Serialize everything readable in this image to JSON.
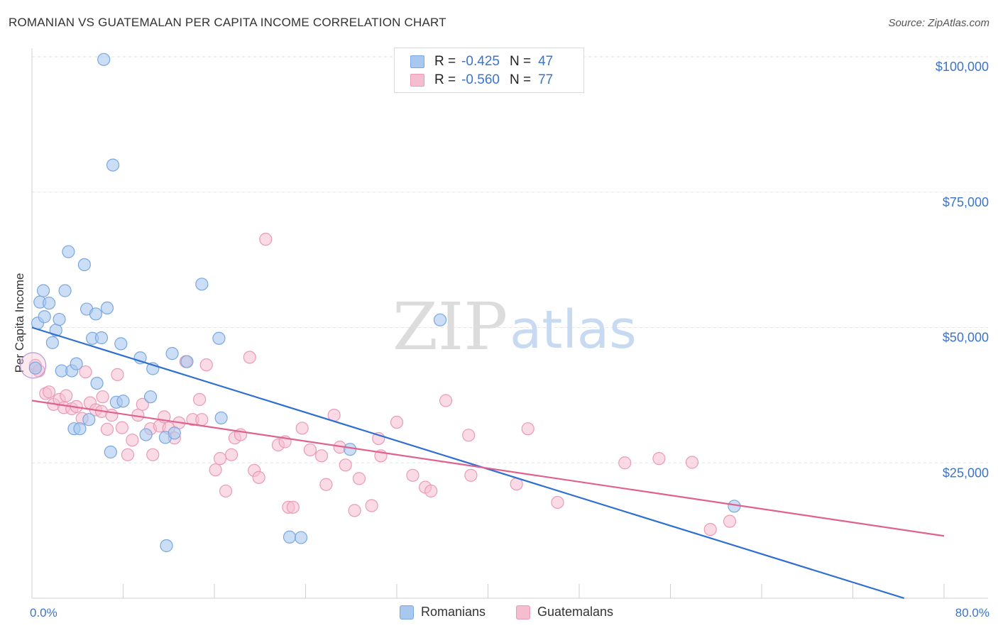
{
  "title": "ROMANIAN VS GUATEMALAN PER CAPITA INCOME CORRELATION CHART",
  "source": "Source: ZipAtlas.com",
  "watermark": {
    "zip": "ZIP",
    "atlas": "atlas"
  },
  "legend": {
    "rows": [
      {
        "r_label": "R =",
        "r_value": "-0.425",
        "n_label": "N =",
        "n_value": "47"
      },
      {
        "r_label": "R =",
        "r_value": "-0.560",
        "n_label": "N =",
        "n_value": "77"
      }
    ]
  },
  "bottom_legend": {
    "romanians": "Romanians",
    "guatemalans": "Guatemalans"
  },
  "colors": {
    "romanians_fill": "#a9c8ef",
    "romanians_stroke": "#7aa7de",
    "romanians_line": "#2f6fd1",
    "guatemalans_fill": "#f6bdd0",
    "guatemalans_stroke": "#ea9ab6",
    "guatemalans_line": "#e0628c",
    "tick_text": "#3b74c9"
  },
  "chart_data": {
    "type": "scatter",
    "title": "ROMANIAN VS GUATEMALAN PER CAPITA INCOME CORRELATION CHART",
    "xlabel": "",
    "ylabel": "Per Capita Income",
    "xlim": [
      0,
      80
    ],
    "ylim": [
      0,
      102000
    ],
    "x_tick_labels": [
      "0.0%",
      "80.0%"
    ],
    "y_ticks": [
      25000,
      50000,
      75000,
      100000
    ],
    "y_tick_labels": [
      "$25,000",
      "$50,000",
      "$75,000",
      "$100,000"
    ],
    "grid": true,
    "legend_position": "top-center",
    "series": [
      {
        "name": "Romanians",
        "r": -0.425,
        "n": 47,
        "trend": {
          "x": [
            0,
            76.5
          ],
          "y": [
            50000,
            0
          ]
        },
        "points": [
          [
            0.3,
            42500
          ],
          [
            0.5,
            50800
          ],
          [
            0.7,
            54700
          ],
          [
            1.0,
            56800
          ],
          [
            1.1,
            52000
          ],
          [
            1.5,
            54500
          ],
          [
            1.8,
            47200
          ],
          [
            2.1,
            49500
          ],
          [
            2.4,
            51500
          ],
          [
            2.6,
            42000
          ],
          [
            2.9,
            56800
          ],
          [
            3.2,
            64000
          ],
          [
            3.5,
            42000
          ],
          [
            3.7,
            31300
          ],
          [
            3.9,
            43300
          ],
          [
            4.2,
            31300
          ],
          [
            4.6,
            61600
          ],
          [
            4.8,
            53400
          ],
          [
            5.0,
            33000
          ],
          [
            5.3,
            48000
          ],
          [
            5.6,
            52500
          ],
          [
            5.7,
            39700
          ],
          [
            6.1,
            48100
          ],
          [
            6.3,
            99500
          ],
          [
            6.6,
            53600
          ],
          [
            6.9,
            27000
          ],
          [
            7.1,
            80000
          ],
          [
            7.4,
            36200
          ],
          [
            7.8,
            47000
          ],
          [
            8.0,
            36400
          ],
          [
            9.5,
            44400
          ],
          [
            10.0,
            30200
          ],
          [
            10.4,
            37200
          ],
          [
            10.6,
            42400
          ],
          [
            11.7,
            29700
          ],
          [
            12.3,
            45200
          ],
          [
            12.5,
            30500
          ],
          [
            13.6,
            43700
          ],
          [
            14.9,
            58000
          ],
          [
            16.4,
            48000
          ],
          [
            16.6,
            33300
          ],
          [
            11.8,
            9700
          ],
          [
            22.6,
            11300
          ],
          [
            23.6,
            11200
          ],
          [
            27.9,
            27500
          ],
          [
            35.8,
            51400
          ],
          [
            61.6,
            17000
          ]
        ]
      },
      {
        "name": "Guatemalans",
        "r": -0.56,
        "n": 77,
        "trend": {
          "x": [
            0,
            80
          ],
          "y": [
            36500,
            11500
          ]
        },
        "points": [
          [
            0.3,
            43000
          ],
          [
            0.6,
            42000
          ],
          [
            1.2,
            37800
          ],
          [
            1.5,
            38100
          ],
          [
            1.9,
            35800
          ],
          [
            2.4,
            36700
          ],
          [
            2.8,
            35200
          ],
          [
            3.0,
            37400
          ],
          [
            3.5,
            35000
          ],
          [
            3.9,
            35400
          ],
          [
            4.4,
            33200
          ],
          [
            4.7,
            41800
          ],
          [
            5.1,
            36100
          ],
          [
            5.6,
            34800
          ],
          [
            6.1,
            34500
          ],
          [
            6.2,
            37200
          ],
          [
            6.6,
            31200
          ],
          [
            7.0,
            33800
          ],
          [
            7.5,
            41300
          ],
          [
            7.9,
            31500
          ],
          [
            8.4,
            26500
          ],
          [
            8.8,
            29200
          ],
          [
            9.3,
            33800
          ],
          [
            9.7,
            35800
          ],
          [
            10.4,
            31300
          ],
          [
            10.6,
            26500
          ],
          [
            11.2,
            31800
          ],
          [
            11.6,
            33500
          ],
          [
            12.0,
            31400
          ],
          [
            12.5,
            29600
          ],
          [
            12.9,
            32400
          ],
          [
            13.5,
            43700
          ],
          [
            14.1,
            33000
          ],
          [
            14.7,
            36700
          ],
          [
            14.9,
            33000
          ],
          [
            15.3,
            43100
          ],
          [
            16.1,
            23700
          ],
          [
            16.5,
            25800
          ],
          [
            17.0,
            19800
          ],
          [
            17.5,
            26500
          ],
          [
            17.8,
            29600
          ],
          [
            18.3,
            30200
          ],
          [
            19.1,
            44500
          ],
          [
            19.5,
            23600
          ],
          [
            19.9,
            22300
          ],
          [
            20.5,
            66300
          ],
          [
            21.6,
            28300
          ],
          [
            22.2,
            28900
          ],
          [
            22.5,
            16800
          ],
          [
            22.9,
            16800
          ],
          [
            23.7,
            31400
          ],
          [
            24.4,
            27400
          ],
          [
            25.4,
            26300
          ],
          [
            25.8,
            21000
          ],
          [
            26.5,
            33800
          ],
          [
            27.0,
            27900
          ],
          [
            27.5,
            24600
          ],
          [
            28.3,
            16200
          ],
          [
            28.7,
            22100
          ],
          [
            29.8,
            17100
          ],
          [
            30.4,
            29500
          ],
          [
            30.6,
            26300
          ],
          [
            32.0,
            32500
          ],
          [
            33.4,
            22700
          ],
          [
            34.5,
            20500
          ],
          [
            35.0,
            19800
          ],
          [
            36.3,
            36500
          ],
          [
            38.3,
            30100
          ],
          [
            38.5,
            22700
          ],
          [
            42.5,
            21100
          ],
          [
            43.5,
            31300
          ],
          [
            46.1,
            17700
          ],
          [
            52.0,
            25000
          ],
          [
            55.0,
            25800
          ],
          [
            57.9,
            25100
          ],
          [
            59.5,
            12700
          ],
          [
            61.2,
            14200
          ]
        ]
      }
    ]
  }
}
